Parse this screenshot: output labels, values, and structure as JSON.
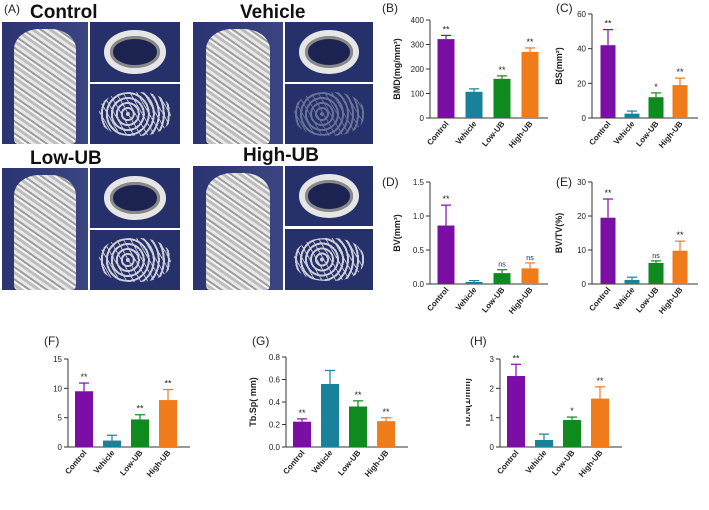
{
  "panel_a": {
    "label": "(A)",
    "groups": [
      "Control",
      "Vehicle",
      "Low-UB",
      "High-UB"
    ]
  },
  "chart_data": [
    {
      "id": "B",
      "label": "(B)",
      "type": "bar",
      "categories": [
        "Control",
        "Vehicle",
        "Low-UB",
        "High-UB"
      ],
      "values": [
        322,
        107,
        160,
        270
      ],
      "errors": [
        15,
        12,
        12,
        16
      ],
      "sig": [
        "**",
        "",
        "**",
        "**"
      ],
      "ylabel": "BMD(mg/mm³)",
      "ylim": [
        0,
        400
      ],
      "yticks": [
        0,
        100,
        200,
        300,
        400
      ],
      "ytick_labels": [
        "0",
        "100",
        "200",
        "300",
        "400"
      ]
    },
    {
      "id": "C",
      "label": "(C)",
      "type": "bar",
      "categories": [
        "Control",
        "Vehicle",
        "Low-UB",
        "High-UB"
      ],
      "values": [
        42,
        2.5,
        12,
        19
      ],
      "errors": [
        9,
        1.5,
        2.5,
        4
      ],
      "sig": [
        "**",
        "",
        "*",
        "**"
      ],
      "ylabel": "BS(mm²)",
      "ylim": [
        0,
        60
      ],
      "yticks": [
        0,
        20,
        40,
        60
      ],
      "ytick_labels": [
        "0",
        "20",
        "40",
        "60"
      ]
    },
    {
      "id": "D",
      "label": "(D)",
      "type": "bar",
      "categories": [
        "Control",
        "Vehicle",
        "Low-UB",
        "High-UB"
      ],
      "values": [
        0.86,
        0.03,
        0.16,
        0.23
      ],
      "errors": [
        0.3,
        0.02,
        0.05,
        0.08
      ],
      "sig": [
        "**",
        "",
        "ns",
        "ns"
      ],
      "ylabel": "BV(mm³)",
      "ylim": [
        0,
        1.5
      ],
      "yticks": [
        0,
        0.5,
        1.0,
        1.5
      ],
      "ytick_labels": [
        "0.0",
        "0.5",
        "1.0",
        "1.5"
      ]
    },
    {
      "id": "E",
      "label": "(E)",
      "type": "bar",
      "categories": [
        "Control",
        "Vehicle",
        "Low-UB",
        "High-UB"
      ],
      "values": [
        19.5,
        1.2,
        6.2,
        9.8
      ],
      "errors": [
        5.5,
        0.8,
        0.6,
        2.8
      ],
      "sig": [
        "**",
        "",
        "ns",
        "**"
      ],
      "ylabel": "BV/TV(%)",
      "ylim": [
        0,
        30
      ],
      "yticks": [
        0,
        10,
        20,
        30
      ],
      "ytick_labels": [
        "0",
        "10",
        "20",
        "30"
      ]
    },
    {
      "id": "F",
      "label": "(F)",
      "type": "bar",
      "categories": [
        "Control",
        "Vehicle",
        "Low-UB",
        "High-UB"
      ],
      "values": [
        9.5,
        1.1,
        4.7,
        8.0
      ],
      "errors": [
        1.4,
        0.9,
        0.8,
        1.8
      ],
      "sig": [
        "**",
        "",
        "**",
        "**"
      ],
      "ylabel": "BS/TV(1/mm)",
      "ylim": [
        0,
        15
      ],
      "yticks": [
        0,
        5,
        10,
        15
      ],
      "ytick_labels": [
        "0",
        "5",
        "10",
        "15"
      ]
    },
    {
      "id": "G",
      "label": "(G)",
      "type": "bar",
      "categories": [
        "Control",
        "Vehicle",
        "Low-UB",
        "High-UB"
      ],
      "values": [
        0.225,
        0.56,
        0.36,
        0.23
      ],
      "errors": [
        0.025,
        0.12,
        0.05,
        0.03
      ],
      "sig": [
        "**",
        "",
        "**",
        "**"
      ],
      "ylabel": "Tb.Sp( mm)",
      "ylim": [
        0,
        0.8
      ],
      "yticks": [
        0,
        0.2,
        0.4,
        0.6,
        0.8
      ],
      "ytick_labels": [
        "0.0",
        "0.2",
        "0.4",
        "0.6",
        "0.8"
      ]
    },
    {
      "id": "H",
      "label": "(H)",
      "type": "bar",
      "categories": [
        "Control",
        "Vehicle",
        "Low-UB",
        "High-UB"
      ],
      "values": [
        2.42,
        0.24,
        0.92,
        1.65
      ],
      "errors": [
        0.4,
        0.2,
        0.1,
        0.4
      ],
      "sig": [
        "**",
        "",
        "*",
        "**"
      ],
      "ylabel": "Tb.N(1/mm)",
      "ylim": [
        0,
        3
      ],
      "yticks": [
        0,
        1,
        2,
        3
      ],
      "ytick_labels": [
        "0",
        "1",
        "2",
        "3"
      ]
    }
  ],
  "colors": {
    "Control": "#7b0fa5",
    "Vehicle": "#17829a",
    "Low-UB": "#0f8a1e",
    "High-UB": "#f07b1a"
  }
}
